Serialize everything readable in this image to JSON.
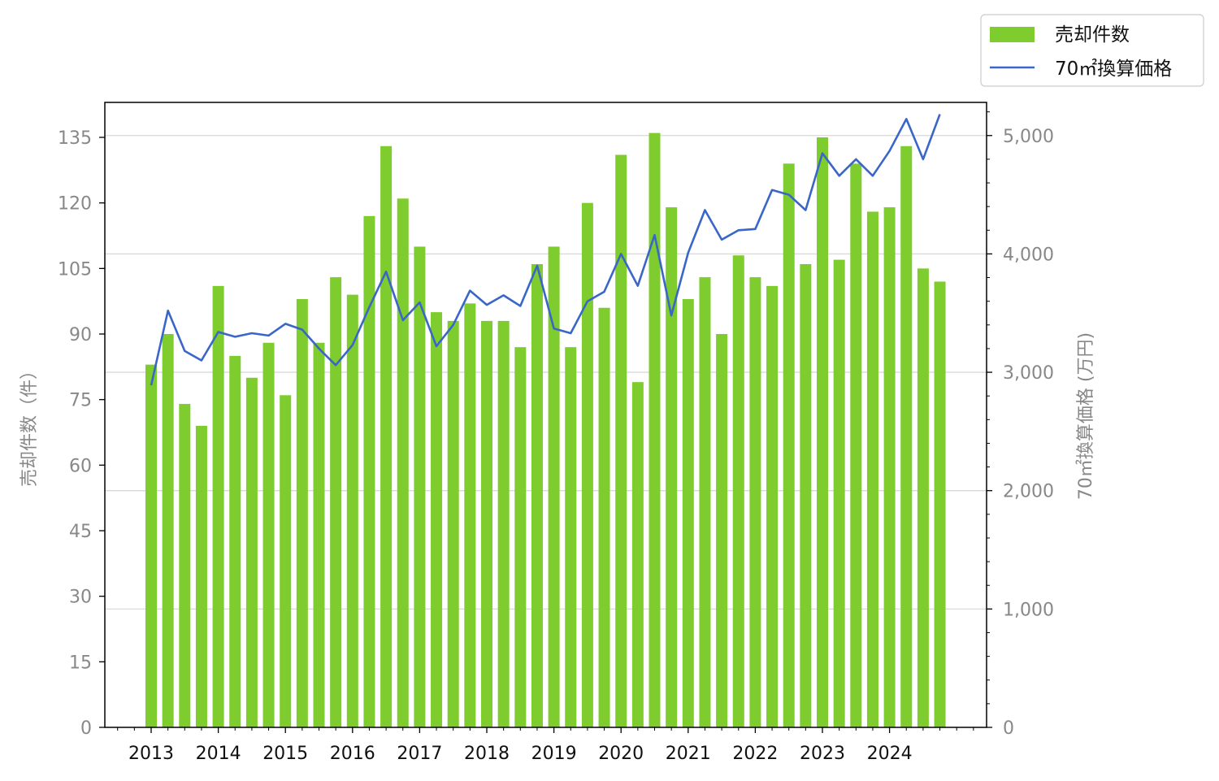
{
  "chart_data": {
    "type": "bar",
    "x": [
      "2013 Q1",
      "2013 Q2",
      "2013 Q3",
      "2013 Q4",
      "2014 Q1",
      "2014 Q2",
      "2014 Q3",
      "2014 Q4",
      "2015 Q1",
      "2015 Q2",
      "2015 Q3",
      "2015 Q4",
      "2016 Q1",
      "2016 Q2",
      "2016 Q3",
      "2016 Q4",
      "2017 Q1",
      "2017 Q2",
      "2017 Q3",
      "2017 Q4",
      "2018 Q1",
      "2018 Q2",
      "2018 Q3",
      "2018 Q4",
      "2019 Q1",
      "2019 Q2",
      "2019 Q3",
      "2019 Q4",
      "2020 Q1",
      "2020 Q2",
      "2020 Q3",
      "2020 Q4",
      "2021 Q1",
      "2021 Q2",
      "2021 Q3",
      "2021 Q4",
      "2022 Q1",
      "2022 Q2",
      "2022 Q3",
      "2022 Q4",
      "2023 Q1",
      "2023 Q2",
      "2023 Q3",
      "2023 Q4",
      "2024 Q1",
      "2024 Q2",
      "2024 Q3",
      "2024 Q4"
    ],
    "x_tick_labels": [
      "2013",
      "2014",
      "2015",
      "2016",
      "2017",
      "2018",
      "2019",
      "2020",
      "2021",
      "2022",
      "2023",
      "2024"
    ],
    "series": [
      {
        "name": "売却件数",
        "type": "bar",
        "axis": "left",
        "color": "#7fcc2e",
        "values": [
          83,
          90,
          74,
          69,
          101,
          85,
          80,
          88,
          76,
          98,
          88,
          103,
          99,
          117,
          133,
          121,
          110,
          95,
          93,
          97,
          93,
          93,
          87,
          106,
          110,
          87,
          120,
          96,
          131,
          79,
          136,
          119,
          98,
          103,
          90,
          108,
          103,
          101,
          129,
          106,
          135,
          107,
          129,
          118,
          119,
          133,
          105,
          102
        ]
      },
      {
        "name": "70㎡換算価格",
        "type": "line",
        "axis": "right",
        "color": "#3a66c8",
        "values": [
          2890,
          3520,
          3180,
          3100,
          3340,
          3300,
          3330,
          3310,
          3410,
          3360,
          3200,
          3060,
          3230,
          3550,
          3850,
          3440,
          3590,
          3220,
          3400,
          3690,
          3570,
          3650,
          3560,
          3900,
          3370,
          3330,
          3600,
          3680,
          4000,
          3730,
          4160,
          3480,
          4010,
          4370,
          4120,
          4200,
          4210,
          4540,
          4500,
          4370,
          4850,
          4660,
          4800,
          4660,
          4870,
          5140,
          4800,
          5180
        ]
      }
    ],
    "y_left": {
      "label": "売却件数（件）",
      "ticks": [
        "0",
        "15",
        "30",
        "45",
        "60",
        "75",
        "90",
        "105",
        "120",
        "135"
      ],
      "lim": [
        0,
        143
      ]
    },
    "y_right": {
      "label": "70㎡換算価格 (万円)",
      "ticks": [
        "0",
        "1,000",
        "2,000",
        "3,000",
        "4,000",
        "5,000"
      ],
      "lim": [
        0,
        5280
      ]
    },
    "legend": {
      "position": "top-right, outside plot",
      "entries": [
        "売却件数",
        "70㎡換算価格"
      ]
    },
    "grid": "horizontal lines at right-axis ticks"
  }
}
